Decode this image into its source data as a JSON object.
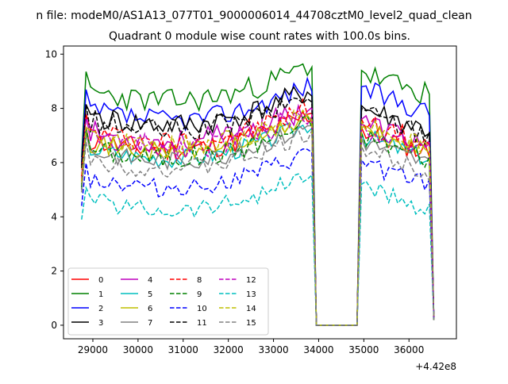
{
  "figure": {
    "suptitle": "n file: modeM0/AS1A13_077T01_9000006014_44708cztM0_level2_quad_clean",
    "title": "Quadrant 0 module wise count rates with 100.0s bins.",
    "offset_label": "+4.42e8"
  },
  "chart_data": {
    "type": "line",
    "title": "Quadrant 0 module wise count rates with 100.0s bins.",
    "xlabel": "",
    "ylabel": "",
    "x_offset": 442000000,
    "xlim": [
      28350,
      37050
    ],
    "ylim": [
      -0.5,
      10.3
    ],
    "xticks": [
      29000,
      30000,
      31000,
      32000,
      33000,
      34000,
      35000,
      36000
    ],
    "xtick_labels": [
      "29000",
      "30000",
      "31000",
      "32000",
      "33000",
      "34000",
      "35000",
      "36000"
    ],
    "yticks": [
      0,
      2,
      4,
      6,
      8,
      10
    ],
    "ytick_labels": [
      "0",
      "2",
      "4",
      "6",
      "8",
      "10"
    ],
    "grid": false,
    "legend_placement": "lower-left",
    "legend_ncol": 4,
    "segments": [
      {
        "x_start": 28750,
        "x_end": 33850,
        "step": 100
      },
      {
        "x_start": 33950,
        "x_end": 34850,
        "step": 100
      },
      {
        "x_start": 34950,
        "x_end": 36550,
        "step": 100
      }
    ],
    "series": [
      {
        "name": "0",
        "color": "#ff0000",
        "dash": "solid",
        "level": 6.9,
        "second_level": 6.8,
        "amp": 0.45,
        "seed": 11,
        "start": 5.3,
        "end": 0.2
      },
      {
        "name": "1",
        "color": "#008000",
        "dash": "solid",
        "level": 8.7,
        "second_level": 8.9,
        "amp": 0.45,
        "seed": 23,
        "start": 6.2,
        "end": 0.2
      },
      {
        "name": "2",
        "color": "#0000ff",
        "dash": "solid",
        "level": 8.0,
        "second_level": 8.3,
        "amp": 0.4,
        "seed": 37,
        "start": 6.0,
        "end": 0.2
      },
      {
        "name": "3",
        "color": "#000000",
        "dash": "solid",
        "level": 7.8,
        "second_level": 7.6,
        "amp": 0.45,
        "seed": 41,
        "start": 5.9,
        "end": 0.2
      },
      {
        "name": "4",
        "color": "#bf00bf",
        "dash": "solid",
        "level": 7.2,
        "second_level": 7.1,
        "amp": 0.45,
        "seed": 53,
        "start": 5.4,
        "end": 0.2
      },
      {
        "name": "5",
        "color": "#00bfbf",
        "dash": "solid",
        "level": 6.6,
        "second_level": 6.6,
        "amp": 0.35,
        "seed": 67,
        "start": 5.0,
        "end": 0.2
      },
      {
        "name": "6",
        "color": "#bfbf00",
        "dash": "solid",
        "level": 6.8,
        "second_level": 6.8,
        "amp": 0.35,
        "seed": 71,
        "start": 5.2,
        "end": 0.2
      },
      {
        "name": "7",
        "color": "#808080",
        "dash": "solid",
        "level": 6.5,
        "second_level": 6.4,
        "amp": 0.35,
        "seed": 83,
        "start": 5.0,
        "end": 0.2
      },
      {
        "name": "8",
        "color": "#ff0000",
        "dash": "dashed",
        "level": 7.2,
        "second_level": 7.1,
        "amp": 0.45,
        "seed": 97,
        "start": 5.5,
        "end": 0.2
      },
      {
        "name": "9",
        "color": "#008000",
        "dash": "dashed",
        "level": 6.6,
        "second_level": 6.6,
        "amp": 0.4,
        "seed": 101,
        "start": 5.1,
        "end": 0.2
      },
      {
        "name": "10",
        "color": "#0000ff",
        "dash": "dashed",
        "level": 5.5,
        "second_level": 5.6,
        "amp": 0.35,
        "seed": 113,
        "start": 4.4,
        "end": 0.2
      },
      {
        "name": "11",
        "color": "#000000",
        "dash": "dashed",
        "level": 7.6,
        "second_level": 7.5,
        "amp": 0.45,
        "seed": 127,
        "start": 5.8,
        "end": 0.2
      },
      {
        "name": "12",
        "color": "#bf00bf",
        "dash": "dashed",
        "level": 7.0,
        "second_level": 7.0,
        "amp": 0.45,
        "seed": 131,
        "start": 5.3,
        "end": 0.2
      },
      {
        "name": "13",
        "color": "#00bfbf",
        "dash": "dashed",
        "level": 4.7,
        "second_level": 4.7,
        "amp": 0.35,
        "seed": 139,
        "start": 3.9,
        "end": 0.2
      },
      {
        "name": "14",
        "color": "#bfbf00",
        "dash": "dashed",
        "level": 7.0,
        "second_level": 7.0,
        "amp": 0.4,
        "seed": 149,
        "start": 5.3,
        "end": 0.2
      },
      {
        "name": "15",
        "color": "#808080",
        "dash": "dashed",
        "level": 6.2,
        "second_level": 6.1,
        "amp": 0.35,
        "seed": 151,
        "start": 4.9,
        "end": 0.2
      }
    ]
  }
}
